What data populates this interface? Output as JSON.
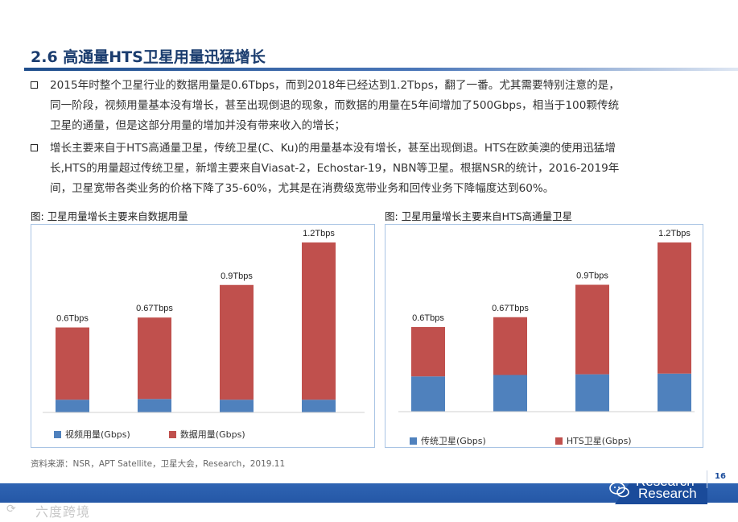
{
  "page": {
    "title": "2.6 高通量HTS卫星用量迅猛增长",
    "page_number": "16"
  },
  "bullets": [
    {
      "lines": [
        "2015年时整个卫星行业的数据用量是0.6Tbps，而到2018年已经达到1.2Tbps，翻了一番。尤其需要特别注意的是，",
        "同一阶段，视频用量基本没有增长，甚至出现倒退的现象，而数据的用量在5年间增加了500Gbps，相当于100颗传统",
        "卫星的通量，但是这部分用量的增加并没有带来收入的增长；"
      ]
    },
    {
      "lines": [
        "增长主要来自于HTS高通量卫星，传统卫星(C、Ku)的用量基本没有增长，甚至出现倒退。HTS在欧美澳的使用迅猛增",
        "长,HTS的用量超过传统卫星，新增主要来自Viasat-2，Echostar-19，NBN等卫星。根据NSR的统计，2016-2019年",
        "间，卫星宽带各类业务的价格下降了35-60%，尤其是在消费级宽带业务和回传业务下降幅度达到60%。"
      ]
    }
  ],
  "figures": [
    {
      "caption": "图:  卫星用量增长主要来自数据用量"
    },
    {
      "caption": "图:  卫星用量增长主要来自HTS高通量卫星"
    }
  ],
  "chart_data": [
    {
      "type": "bar",
      "stacked": true,
      "categories": [
        "",
        "",
        "",
        ""
      ],
      "data_labels": [
        "0.6Tbps",
        "0.67Tbps",
        "0.9Tbps",
        "1.2Tbps"
      ],
      "series": [
        {
          "name": "视频用量(Gbps)",
          "color": "#4f81bd",
          "values": [
            90,
            95,
            90,
            90
          ]
        },
        {
          "name": "数据用量(Gbps)",
          "color": "#c0504d",
          "values": [
            510,
            575,
            810,
            1110
          ]
        }
      ],
      "ylim": [
        0,
        1200
      ],
      "legend_position": "bottom",
      "grid": false
    },
    {
      "type": "bar",
      "stacked": true,
      "categories": [
        "",
        "",
        "",
        ""
      ],
      "data_labels": [
        "0.6Tbps",
        "0.67Tbps",
        "0.9Tbps",
        "1.2Tbps"
      ],
      "series": [
        {
          "name": "传统卫星(Gbps)",
          "color": "#4f81bd",
          "values": [
            250,
            260,
            265,
            270
          ]
        },
        {
          "name": "HTS卫星(Gbps)",
          "color": "#c0504d",
          "values": [
            350,
            410,
            635,
            930
          ]
        }
      ],
      "ylim": [
        0,
        1200
      ],
      "legend_position": "bottom",
      "grid": false
    }
  ],
  "source": "资料来源：NSR，APT Satellite，卫星大会，Research，2019.11",
  "footer": {
    "brand_line1": "Research",
    "brand_line2": "Research",
    "watermark": "六度跨境"
  },
  "icons": {
    "bullet": "square-bullet-icon",
    "wechat": "wechat-icon",
    "watermark_logo": "brand-logo-icon"
  }
}
